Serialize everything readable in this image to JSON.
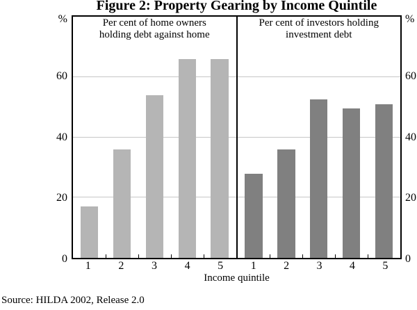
{
  "chart_data": {
    "type": "bar",
    "title": "Figure 2: Property Gearing by Income Quintile",
    "xlabel": "Income quintile",
    "unit": "%",
    "ylim": [
      0,
      80
    ],
    "yticks": [
      0,
      20,
      40,
      60
    ],
    "grid": true,
    "legend": "none",
    "categories": [
      "1",
      "2",
      "3",
      "4",
      "5"
    ],
    "panels": [
      {
        "name": "home-owners",
        "caption_lines": [
          "Per cent of home owners",
          "holding debt against home"
        ],
        "color": "#b5b5b5",
        "values": [
          17,
          36,
          54,
          66,
          66
        ]
      },
      {
        "name": "investors",
        "caption_lines": [
          "Per cent of investors holding",
          "investment debt"
        ],
        "color": "#808080",
        "values": [
          28,
          36,
          52.5,
          49.5,
          51
        ]
      }
    ],
    "source": "Source: HILDA 2002, Release 2.0"
  }
}
